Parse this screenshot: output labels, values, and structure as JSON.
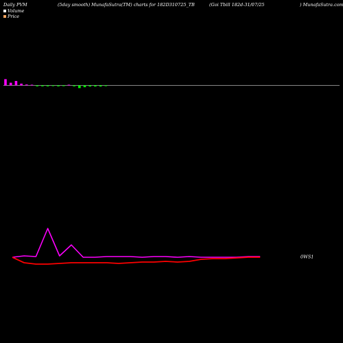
{
  "header": {
    "left": "Daily PVM",
    "middle": "(5day smooth) MunafaSutra(TM) charts for 182D310725_TB",
    "right": "(Goi  Tbill 182d-31/07/25",
    "site": ") MunafaSutra.com"
  },
  "legend": [
    {
      "label": "Volume",
      "color": "#ffffff"
    },
    {
      "label": "Price",
      "color": "#f4a460"
    }
  ],
  "colors": {
    "background": "#000000",
    "baseline": "#b4b4b4",
    "vol_up": "#ff00ff",
    "vol_down": "#00ff00",
    "price_line": "#ff00ff",
    "smooth_line": "#ff0000"
  },
  "chart_data": [
    {
      "type": "bar",
      "values": [
        7,
        3,
        5,
        2,
        1,
        0.5,
        -1,
        -1,
        -1,
        -0.6,
        -1,
        -0.6,
        0.4,
        -1,
        -3,
        -2,
        -1.2,
        -1.2,
        -1.2,
        -0.8
      ]
    },
    {
      "type": "line",
      "series": [
        {
          "values": [
            375,
            373,
            374,
            333,
            373,
            357,
            375,
            375,
            374,
            374,
            374,
            375,
            374,
            374,
            375,
            374,
            375,
            375,
            375,
            375,
            374,
            374
          ]
        },
        {
          "values": [
            375,
            383,
            385,
            385,
            384,
            383,
            383,
            383,
            383,
            384,
            383,
            382,
            382,
            381,
            382,
            381,
            378,
            377,
            377,
            376,
            375,
            375
          ]
        }
      ],
      "end_label": "0WS1",
      "ylim": [
        300,
        420
      ]
    }
  ]
}
